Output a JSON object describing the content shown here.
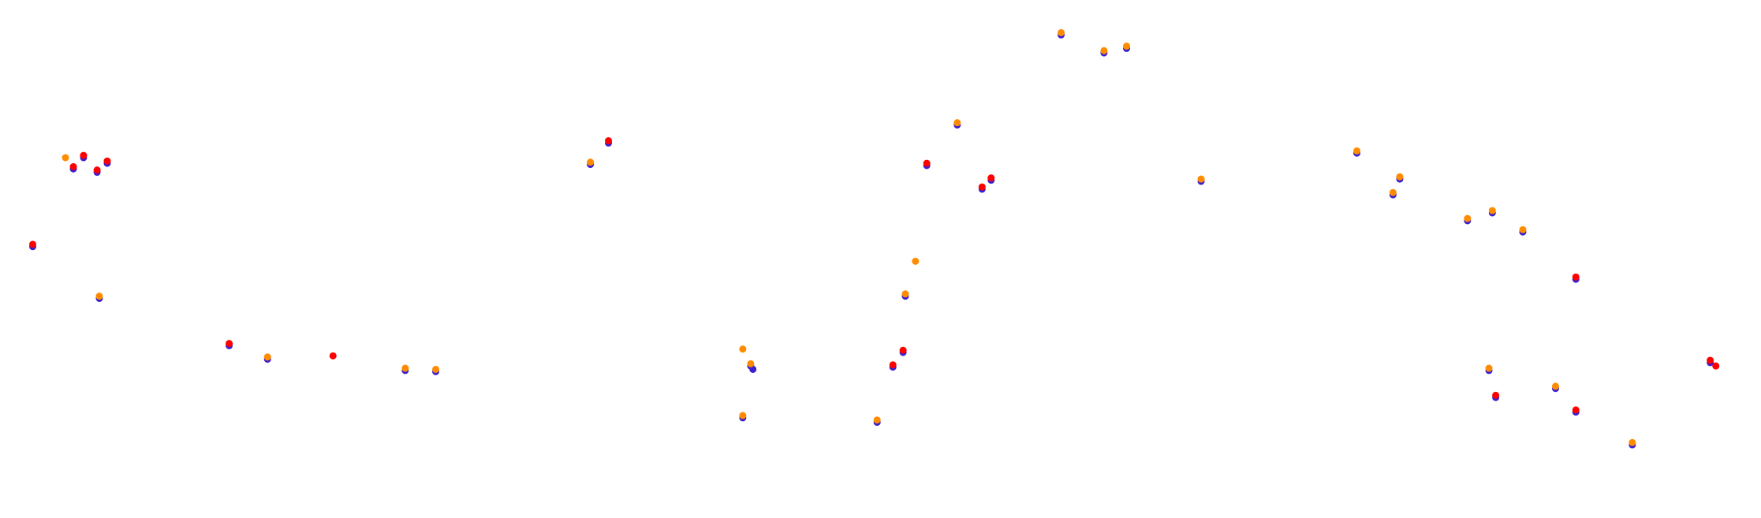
{
  "chart_data": {
    "type": "scatter",
    "xlim": [
      0,
      1560
    ],
    "ylim": [
      460,
      0
    ],
    "series": [
      {
        "name": "blue",
        "color": "#3a1fd0",
        "x": [
          65,
          74,
          86,
          95,
          29,
          88,
          203,
          237,
          359,
          386,
          523,
          539,
          665,
          667,
          658,
          777,
          791,
          800,
          802,
          821,
          848,
          870,
          878,
          940,
          978,
          998,
          1064,
          1202,
          1240,
          1234,
          1300,
          1322,
          1349,
          1396,
          1319,
          1325,
          1378,
          1396,
          1446,
          1515
        ],
        "y": [
          150,
          140,
          153,
          145,
          219,
          265,
          307,
          319,
          329,
          330,
          146,
          127,
          325,
          328,
          371,
          375,
          326,
          313,
          263,
          147,
          111,
          168,
          160,
          31,
          47,
          43,
          161,
          136,
          159,
          173,
          196,
          189,
          206,
          248,
          329,
          353,
          345,
          366,
          395,
          322
        ]
      },
      {
        "name": "red",
        "color": "#ff0000",
        "x": [
          65,
          74,
          86,
          95,
          29,
          203,
          295,
          539,
          791,
          800,
          821,
          870,
          878,
          1396,
          1325,
          1396,
          1515,
          1520
        ],
        "y": [
          148,
          138,
          151,
          143,
          217,
          305,
          316,
          125,
          324,
          311,
          145,
          166,
          158,
          246,
          351,
          364,
          320,
          325
        ]
      },
      {
        "name": "orange",
        "color": "#ff8c00",
        "x": [
          58,
          88,
          237,
          359,
          386,
          523,
          658,
          665,
          658,
          777,
          802,
          811,
          848,
          940,
          978,
          998,
          1064,
          1202,
          1240,
          1234,
          1300,
          1322,
          1349,
          1319,
          1378,
          1446
        ],
        "y": [
          140,
          263,
          317,
          327,
          328,
          144,
          310,
          323,
          369,
          373,
          261,
          232,
          109,
          29,
          45,
          41,
          159,
          134,
          157,
          171,
          194,
          187,
          204,
          327,
          343,
          393
        ]
      }
    ]
  }
}
